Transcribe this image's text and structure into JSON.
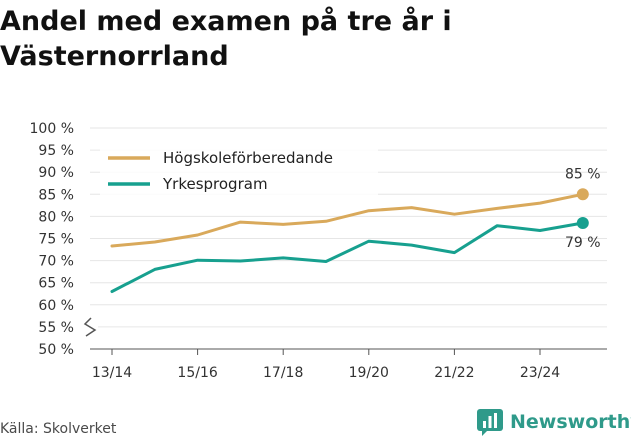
{
  "title": "Andel med examen på tre år i Västernorrland",
  "source": "Källa: Skolverket",
  "brand": "Newsworthy",
  "chart_data": {
    "type": "line",
    "title": "Andel med examen på tre år i Västernorrland",
    "categories": [
      "13/14",
      "14/15",
      "15/16",
      "16/17",
      "17/18",
      "18/19",
      "19/20",
      "20/21",
      "21/22",
      "22/23",
      "23/24",
      "24/25"
    ],
    "x_tick_labels": [
      "13/14",
      "15/16",
      "17/18",
      "19/20",
      "21/22",
      "23/24"
    ],
    "ylim": [
      50,
      100
    ],
    "y_ticks": [
      50,
      55,
      60,
      65,
      70,
      75,
      80,
      85,
      90,
      95,
      100
    ],
    "y_tick_labels": [
      "50 %",
      "55 %",
      "60 %",
      "65 %",
      "70 %",
      "75 %",
      "80 %",
      "85 %",
      "90 %",
      "95 %",
      "100 %"
    ],
    "axis_break": true,
    "legend_position": "top-left",
    "series": [
      {
        "name": "Högskoleförberedande",
        "color": "#d9a95b",
        "values": [
          73.3,
          74.2,
          75.8,
          78.7,
          78.2,
          78.9,
          81.3,
          82.0,
          80.5,
          81.8,
          83.0,
          85.0
        ],
        "end_label": "85 %"
      },
      {
        "name": "Yrkesprogram",
        "color": "#17a08f",
        "values": [
          63.0,
          68.0,
          70.1,
          69.9,
          70.6,
          69.8,
          74.4,
          73.5,
          71.8,
          77.9,
          76.8,
          78.5
        ],
        "end_label": "79 %"
      }
    ]
  }
}
